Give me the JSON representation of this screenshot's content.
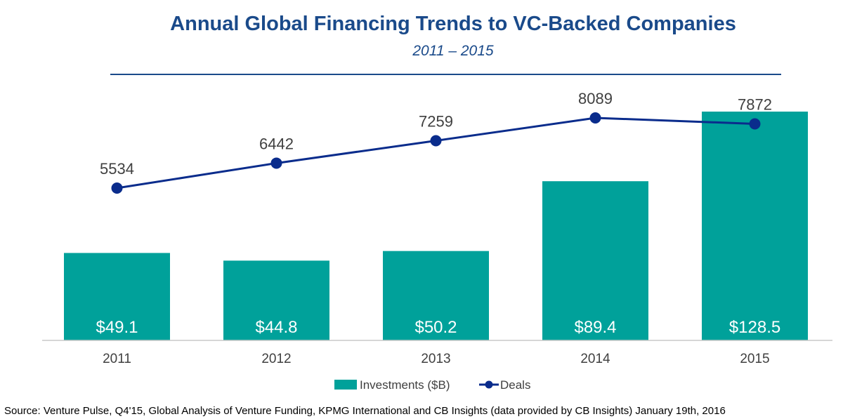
{
  "colors": {
    "title": "#1a4a8a",
    "bar": "#00a19a",
    "line": "#0a2c8c",
    "axis": "#c8c8c8",
    "rule": "#1a4a8a"
  },
  "chart_data": {
    "type": "bar",
    "title": "Annual Global Financing Trends to VC-Backed Companies",
    "subtitle": "2011 – 2015",
    "categories": [
      "2011",
      "2012",
      "2013",
      "2014",
      "2015"
    ],
    "series": [
      {
        "name": "Investments ($B)",
        "type": "bar",
        "values": [
          49.1,
          44.8,
          50.2,
          89.4,
          128.5
        ],
        "labels": [
          "$49.1",
          "$44.8",
          "$50.2",
          "$89.4",
          "$128.5"
        ]
      },
      {
        "name": "Deals",
        "type": "line",
        "values": [
          5534,
          6442,
          7259,
          8089,
          7872
        ],
        "labels": [
          "5534",
          "6442",
          "7259",
          "8089",
          "7872"
        ]
      }
    ],
    "bar_ylim": [
      0,
      130
    ],
    "line_ylim": [
      1900,
      8300
    ],
    "legend_position": "bottom",
    "grid": false,
    "source": "Source: Venture Pulse, Q4'15, Global Analysis of Venture Funding, KPMG International and CB Insights (data provided by CB Insights) January 19th, 2016"
  }
}
